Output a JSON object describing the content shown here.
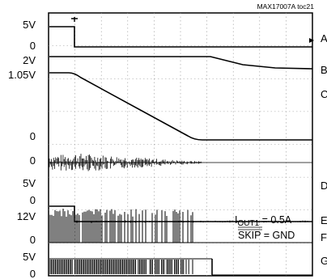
{
  "chart_data": {
    "type": "line",
    "title": "MAX17007A toc21",
    "annotation": {
      "line1_main": "I",
      "line1_sub": "OUT1",
      "line1_rest": " = 0.5A",
      "line2": "SKIP = GND"
    },
    "traces": [
      {
        "id": "A",
        "marker": "A",
        "scale_labels": [
          "5V",
          "0"
        ]
      },
      {
        "id": "B",
        "marker": "B",
        "scale_labels": [
          "2V"
        ]
      },
      {
        "id": "C",
        "marker": "C",
        "scale_labels": [
          "1.05V",
          "0"
        ]
      },
      {
        "id": "D",
        "marker": "D",
        "scale_labels": [
          "0"
        ]
      },
      {
        "id": "E",
        "marker": "E",
        "scale_labels": [
          "5V",
          "0"
        ]
      },
      {
        "id": "F",
        "marker": "F",
        "scale_labels": [
          "12V",
          "0"
        ]
      },
      {
        "id": "G",
        "marker": "G",
        "scale_labels": [
          "5V",
          "0"
        ]
      }
    ],
    "grid": true,
    "xdivisions": 10,
    "ydivisions": 8
  }
}
